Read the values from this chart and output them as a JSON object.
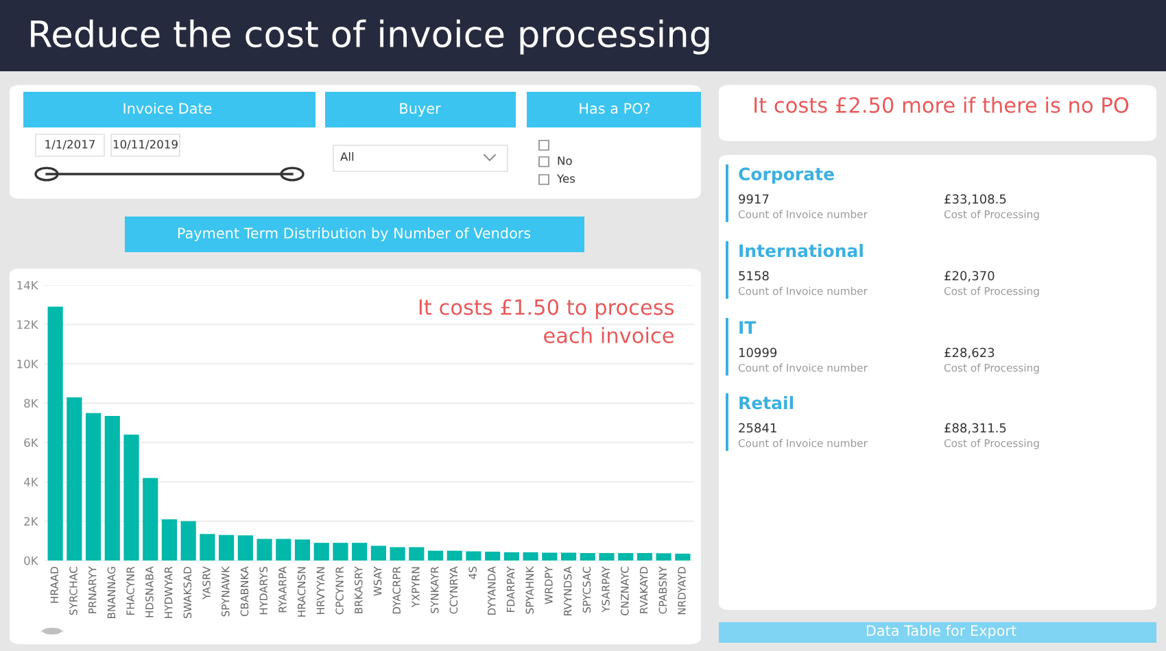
{
  "chart_data": [
    {
      "type": "bar",
      "title": "Payment Term Distribution by Number of Vendors",
      "categories": [
        "HRAAD",
        "SYRCHAC",
        "PRNARYY",
        "BNANNAG",
        "FHACYNR",
        "HDSNABA",
        "HYDWYAR",
        "SWAKSAD",
        "YASRV",
        "SPYNAWK",
        "CBABNKA",
        "HYDARYS",
        "RYAARPA",
        "HRACNSN",
        "HRVYYAN",
        "CPCYNYR",
        "BRKASRY",
        "WSAY",
        "DYACRPR",
        "YXPYRN",
        "SYNKAYR",
        "CCYNRYA",
        "4S",
        "DYYANDA",
        "FDARPAY",
        "SPYAHNK",
        "WRDPY",
        "RVYNDSA",
        "SPYCSAC",
        "YSARPAY",
        "CNZNAYC",
        "RVAKAYD",
        "CPABSNY",
        "NRDYAYD"
      ],
      "values": [
        12900,
        8300,
        7500,
        7350,
        6400,
        4200,
        2100,
        2000,
        1350,
        1300,
        1280,
        1100,
        1100,
        1070,
        900,
        900,
        900,
        750,
        680,
        680,
        500,
        500,
        470,
        450,
        420,
        420,
        400,
        400,
        380,
        380,
        380,
        380,
        370,
        350
      ],
      "color": "#01b8aa",
      "ylim": [
        0,
        14000
      ],
      "yticks": [
        {
          "value": 0,
          "label": "0K"
        },
        {
          "value": 2000,
          "label": "2K"
        },
        {
          "value": 4000,
          "label": "4K"
        },
        {
          "value": 6000,
          "label": "6K"
        },
        {
          "value": 8000,
          "label": "8K"
        },
        {
          "value": 10000,
          "label": "10K"
        },
        {
          "value": 12000,
          "label": "12K"
        },
        {
          "value": 14000,
          "label": "14K"
        }
      ],
      "grid": "y",
      "annotations": [
        "It costs £1.50 to process\neach invoice"
      ]
    },
    {
      "type": "other",
      "title": "Reduce the cost of invoice processing",
      "annotations": [
        "Invoice Date",
        "1/1/2017",
        "10/11/2019",
        "Buyer",
        "All",
        "Has a PO?",
        "No",
        "Yes",
        "It costs £2.50 more if there is no PO",
        "Corporate",
        "9917",
        "Count of Invoice number",
        "£33,108.5",
        "Cost of Processing",
        "International",
        "5158",
        "Count of Invoice number",
        "£20,370",
        "Cost of Processing",
        "IT",
        "10999",
        "Count of Invoice number",
        "£28,623",
        "Cost of Processing",
        "Retail",
        "25841",
        "Count of Invoice number",
        "£88,311.5",
        "Cost of Processing",
        "Data Table for Export"
      ]
    }
  ]
}
